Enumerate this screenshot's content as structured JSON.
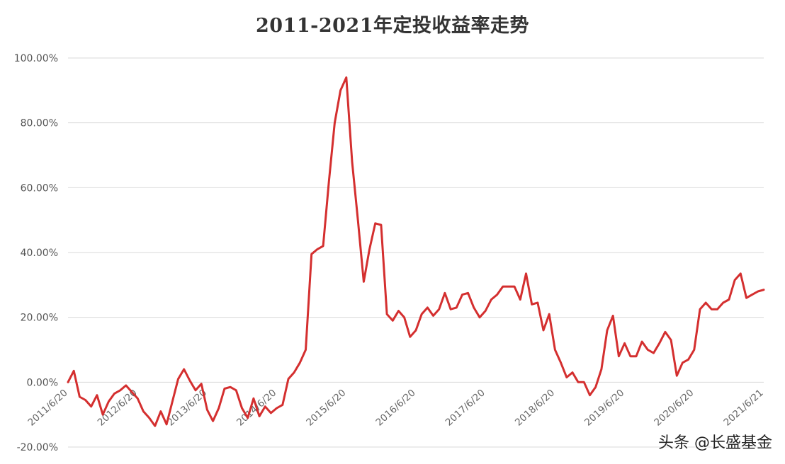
{
  "chart_data": {
    "type": "line",
    "title": "2011-2021年定投收益率走势",
    "xlabel": "",
    "ylabel": "",
    "ylim": [
      -20,
      100
    ],
    "yticks": [
      -20,
      0,
      20,
      40,
      60,
      80,
      100
    ],
    "ytick_labels": [
      "-20.00%",
      "0.00%",
      "20.00%",
      "40.00%",
      "60.00%",
      "80.00%",
      "100.00%"
    ],
    "xtick_labels": [
      "2011/6/20",
      "2012/6/20",
      "2013/6/20",
      "2014/6/20",
      "2015/6/20",
      "2016/6/20",
      "2017/6/20",
      "2018/6/20",
      "2019/6/20",
      "2020/6/20",
      "2021/6/21"
    ],
    "grid": true,
    "series": [
      {
        "color": "#d42f2f",
        "values": [
          0,
          3.5,
          -4.5,
          -5.5,
          -7.5,
          -4,
          -10,
          -6,
          -3.5,
          -2.5,
          -1,
          -3,
          -5,
          -9,
          -11,
          -13.5,
          -9,
          -13,
          -6,
          1,
          4,
          0.5,
          -2.5,
          -0.5,
          -8.5,
          -12,
          -8,
          -2,
          -1.5,
          -2.5,
          -8,
          -11,
          -5,
          -10.5,
          -7.5,
          -9.5,
          -8,
          -7,
          1,
          3,
          6,
          10,
          39.5,
          41,
          42,
          62,
          80,
          90,
          94,
          68,
          50,
          31,
          41,
          49,
          48.5,
          21,
          19,
          22,
          20,
          14,
          16,
          21,
          23,
          20.5,
          22.5,
          27.5,
          22.5,
          23,
          27,
          27.5,
          23,
          20,
          22,
          25.5,
          27,
          29.5,
          29.5,
          29.5,
          25.5,
          33.5,
          24,
          24.5,
          16,
          21,
          10,
          6,
          1.5,
          3,
          0,
          0,
          -4,
          -1.5,
          4,
          16,
          20.5,
          8,
          12,
          8,
          8,
          12.5,
          10,
          9,
          12,
          15.5,
          13,
          2,
          6,
          7,
          10,
          22.5,
          24.5,
          22.5,
          22.5,
          24.5,
          25.5,
          31.5,
          33.5,
          26,
          27,
          28,
          28.5
        ]
      }
    ]
  },
  "watermark": "头条 @长盛基金"
}
